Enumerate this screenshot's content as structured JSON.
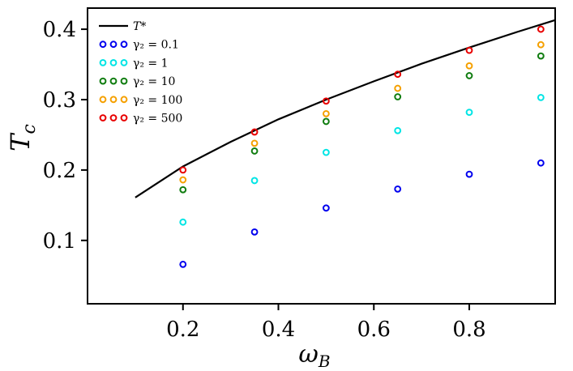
{
  "chart_data": {
    "type": "scatter",
    "title": "",
    "xlabel": "ω",
    "xlabel_sub": "B",
    "ylabel": "T",
    "ylabel_sub": "c",
    "xlim": [
      0.0,
      0.98
    ],
    "ylim": [
      0.01,
      0.43
    ],
    "xticks": [
      0.2,
      0.4,
      0.6,
      0.8
    ],
    "xtick_labels": [
      "0.2",
      "0.4",
      "0.6",
      "0.8"
    ],
    "yticks": [
      0.1,
      0.2,
      0.3,
      0.4
    ],
    "ytick_labels": [
      "0.1",
      "0.2",
      "0.3",
      "0.4"
    ],
    "grid": false,
    "legend_position": "top-left",
    "line": {
      "name": "T*",
      "color": "#000000",
      "x": [
        0.1,
        0.2,
        0.3,
        0.4,
        0.5,
        0.6,
        0.7,
        0.8,
        0.9,
        0.98
      ],
      "y": [
        0.161,
        0.205,
        0.24,
        0.272,
        0.3,
        0.326,
        0.351,
        0.374,
        0.396,
        0.413
      ]
    },
    "x": [
      0.2,
      0.35,
      0.5,
      0.65,
      0.8,
      0.95
    ],
    "series": [
      {
        "name": "γ₂ = 0.1",
        "color": "#0000ee",
        "values": [
          0.066,
          0.112,
          0.146,
          0.173,
          0.194,
          0.21
        ]
      },
      {
        "name": "γ₂ = 1",
        "color": "#00e5e5",
        "values": [
          0.126,
          0.185,
          0.225,
          0.256,
          0.282,
          0.303
        ]
      },
      {
        "name": "γ₂ = 10",
        "color": "#107d10",
        "values": [
          0.172,
          0.227,
          0.269,
          0.304,
          0.334,
          0.362
        ]
      },
      {
        "name": "γ₂ = 100",
        "color": "#f5a000",
        "values": [
          0.186,
          0.238,
          0.28,
          0.316,
          0.348,
          0.378
        ]
      },
      {
        "name": "γ₂ = 500",
        "color": "#e80000",
        "values": [
          0.2,
          0.254,
          0.298,
          0.336,
          0.37,
          0.4
        ]
      }
    ]
  }
}
